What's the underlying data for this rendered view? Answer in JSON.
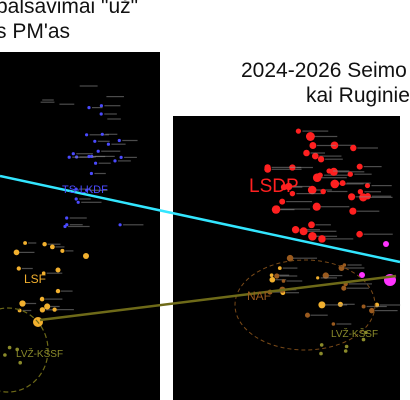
{
  "headings": {
    "left_line1": "balsavimai \"už\"",
    "left_line2": "s PM'as",
    "right_line1": "2024-2026 Seimo",
    "right_line2": "kai Ruginie"
  },
  "colors": {
    "panel_bg": "#000000",
    "TS-LKDF": "#4a4aff",
    "LSDP": "#ff2020",
    "LSF": "#f2b02e",
    "LVŽ-KŠSF": "#8a8a2a",
    "NAF": "#9a5a1e",
    "cyan_line": "#33e6ff",
    "olive_line": "#6e6a18",
    "magenta": "#ff33ff"
  },
  "chart_data": {
    "type": "scatter",
    "panels": [
      {
        "id": "left",
        "clusters": [
          {
            "name": "TS-LKDF",
            "label": "TS-LKDF",
            "color": "#4a4aff"
          },
          {
            "name": "LSF",
            "label": "LSF",
            "color": "#f2b02e"
          },
          {
            "name": "LVŽ-KŠSF",
            "label": "LVŽ-KŠSF",
            "color": "#8a8a2a"
          }
        ]
      },
      {
        "id": "right",
        "clusters": [
          {
            "name": "LSDP",
            "label": "LSDP",
            "color": "#ff2020"
          },
          {
            "name": "NAF",
            "label": "NAF",
            "color": "#9a5a1e"
          },
          {
            "name": "LVŽ-KŠSF",
            "label": "LVŽ-KŠSF",
            "color": "#8a8a2a"
          }
        ]
      }
    ],
    "connectors": [
      {
        "color": "#33e6ff"
      },
      {
        "color": "#6e6a18"
      }
    ]
  }
}
